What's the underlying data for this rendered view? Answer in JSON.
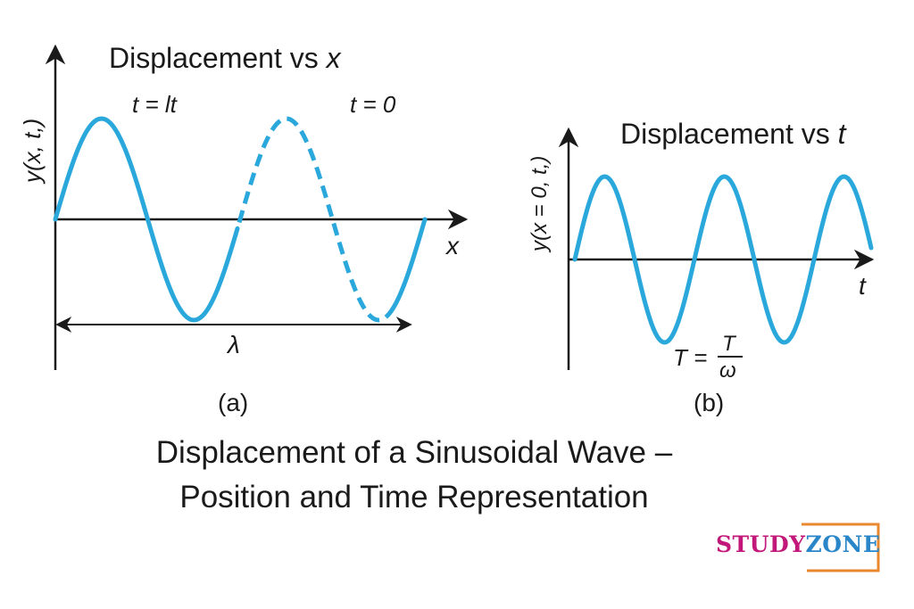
{
  "panel_a": {
    "title": "Displacement vs ",
    "title_var": "x",
    "y_axis_label": "y(x, t,)",
    "x_axis_label": "x",
    "curve_solid_label": "t = lt",
    "curve_dashed_label": "t = 0",
    "wavelength_label": "λ",
    "panel_label": "(a)"
  },
  "panel_b": {
    "title": "Displacement vs ",
    "title_var": "t",
    "y_axis_label": "y(x = 0, t,)",
    "x_axis_label": "t",
    "period_label_left": "T =",
    "period_numerator": "T",
    "period_denominator": "ω",
    "panel_label": "(b)"
  },
  "caption": {
    "line1": "Displacement of a Sinusoidal Wave –",
    "line2": "Position and Time Representation"
  },
  "logo": {
    "part1": "STUDY",
    "part2": "ZONE"
  },
  "colors": {
    "wave": "#2aa8dc",
    "axis": "#1a1a1a",
    "logo_border": "#e8892f",
    "logo_study": "#c2187a",
    "logo_zone": "#2b86c9"
  }
}
